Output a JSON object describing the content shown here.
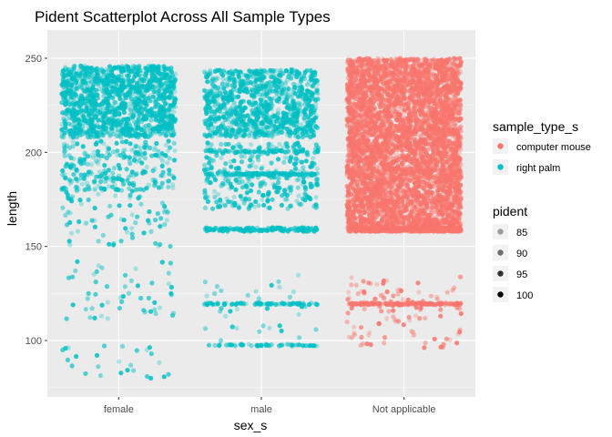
{
  "chart_data": {
    "type": "scatter",
    "title": "Pident Scatterplot Across All Sample Types",
    "xlabel": "sex_s",
    "ylabel": "length",
    "categories": [
      "female",
      "male",
      "Not applicable"
    ],
    "ylim": [
      70,
      265
    ],
    "yticks": [
      100,
      150,
      200,
      250
    ],
    "grid": true,
    "legend_placement": "right",
    "color_legend": {
      "title": "sample_type_s",
      "entries": [
        {
          "label": "computer mouse",
          "color": "#F8766D"
        },
        {
          "label": "right palm",
          "color": "#00BFC4"
        }
      ]
    },
    "alpha_legend": {
      "title": "pident",
      "entries": [
        {
          "label": "85",
          "alpha": 0.35
        },
        {
          "label": "90",
          "alpha": 0.55
        },
        {
          "label": "95",
          "alpha": 0.8
        },
        {
          "label": "100",
          "alpha": 1.0
        }
      ]
    },
    "series": [
      {
        "name": "right palm",
        "color": "#00BFC4",
        "groups": [
          {
            "category": "female",
            "count": 1650,
            "clusters": [
              {
                "y": [
                  208,
                  246
                ],
                "weight": 0.72
              },
              {
                "y": [
                  180,
                  206
                ],
                "weight": 0.14
              },
              {
                "y": [
                  150,
                  182
                ],
                "weight": 0.05
              },
              {
                "y": [
                  111,
                  142
                ],
                "weight": 0.03
              },
              {
                "y": [
                  79,
                  98
                ],
                "weight": 0.015
              }
            ]
          },
          {
            "category": "male",
            "count": 1700,
            "clusters": [
              {
                "y": [
                  208,
                  244
                ],
                "weight": 0.5
              },
              {
                "y": [
                  170,
                  205
                ],
                "weight": 0.18
              },
              {
                "y": [
                  188,
                  189
                ],
                "weight": 0.05
              },
              {
                "y": [
                  200,
                  201
                ],
                "weight": 0.03
              },
              {
                "y": [
                  158,
                  160
                ],
                "weight": 0.08
              },
              {
                "y": [
                  119,
                  120
                ],
                "weight": 0.04
              },
              {
                "y": [
                  97,
                  98
                ],
                "weight": 0.03
              },
              {
                "y": [
                  100,
                  135
                ],
                "weight": 0.02
              }
            ]
          }
        ]
      },
      {
        "name": "computer mouse",
        "color": "#F8766D",
        "groups": [
          {
            "category": "Not applicable",
            "count": 5200,
            "clusters": [
              {
                "y": [
                  160,
                  250
                ],
                "weight": 0.82
              },
              {
                "y": [
                  158,
                  160
                ],
                "weight": 0.1
              },
              {
                "y": [
                  119,
                  120
                ],
                "weight": 0.03
              },
              {
                "y": [
                  96,
                  134
                ],
                "weight": 0.02
              }
            ]
          }
        ]
      }
    ]
  }
}
